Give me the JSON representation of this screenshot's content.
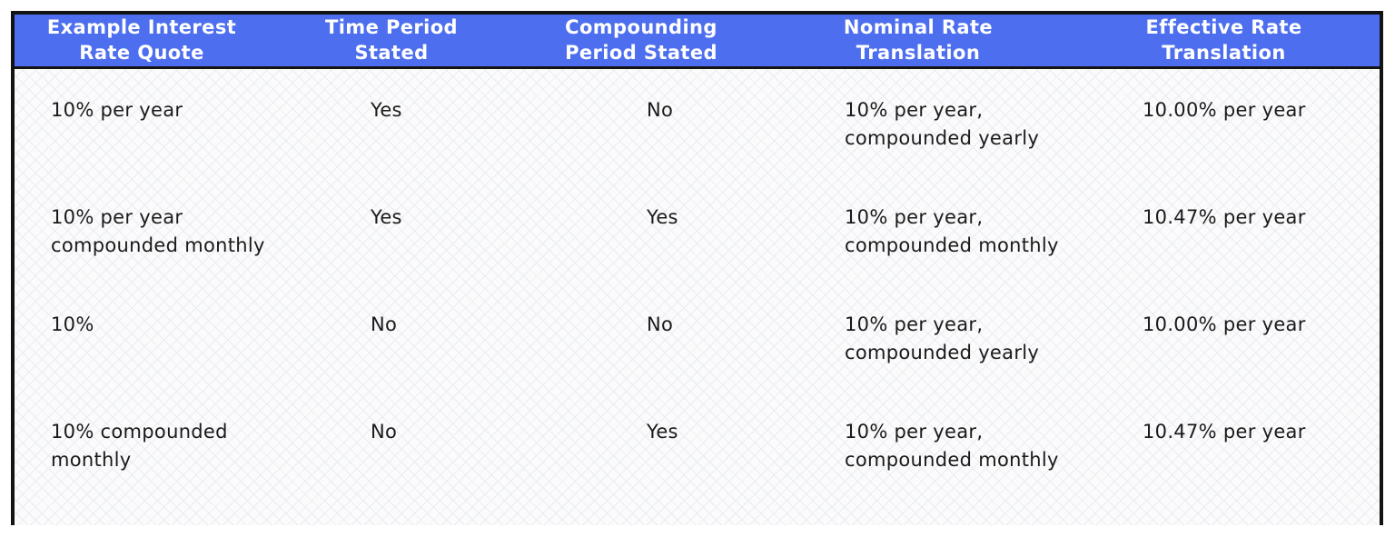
{
  "chart_data": {
    "type": "table",
    "title": "",
    "columns": [
      "Example Interest\nRate Quote",
      "Time Period\nStated",
      "Compounding\nPeriod Stated",
      "Nominal Rate\nTranslation",
      "Effective Rate\nTranslation"
    ],
    "rows": [
      {
        "cells": [
          "10% per year",
          "Yes",
          "No",
          "10% per year,\ncompounded yearly",
          "10.00% per year"
        ]
      },
      {
        "cells": [
          "10% per year\ncompounded monthly",
          "Yes",
          "Yes",
          "10% per year,\ncompounded monthly",
          "10.47% per year"
        ]
      },
      {
        "cells": [
          "10%",
          "No",
          "No",
          "10% per year,\ncompounded yearly",
          "10.00% per year"
        ]
      },
      {
        "cells": [
          "10% compounded\nmonthly",
          "No",
          "Yes",
          "10% per year,\ncompounded monthly",
          "10.47% per year"
        ]
      }
    ]
  },
  "colors": {
    "header_bg": "#4d6eee",
    "header_text": "#ffffff",
    "frame_border": "#131313",
    "body_text": "#1a1a1a",
    "body_bg": "#fbfbfc",
    "crosshatch_line": "#e9ecf1"
  }
}
